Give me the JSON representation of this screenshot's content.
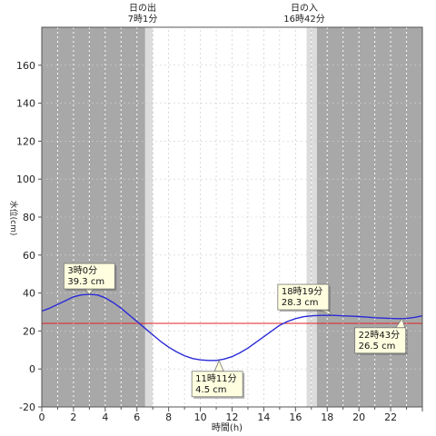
{
  "chart_data": {
    "type": "line",
    "title": "",
    "xlabel": "時間(h)",
    "ylabel": "水位(cm)",
    "xlim": [
      0,
      24
    ],
    "ylim": [
      -20,
      180
    ],
    "x_ticks": [
      0,
      2,
      4,
      6,
      8,
      10,
      12,
      14,
      16,
      18,
      20,
      22
    ],
    "x_tick_labels": [
      "0",
      "2",
      "4",
      "6",
      "8",
      "10",
      "12",
      "14",
      "16",
      "18",
      "20",
      "22"
    ],
    "y_ticks": [
      -20,
      0,
      20,
      40,
      60,
      80,
      100,
      120,
      140,
      160
    ],
    "y_tick_labels": [
      "-20",
      "0",
      "20",
      "40",
      "60",
      "80",
      "100",
      "120",
      "140",
      "160"
    ],
    "grid": true,
    "reference_line": {
      "y": 24,
      "color": "#e02020"
    },
    "series": [
      {
        "color": "#2a2ad8",
        "x": [
          0,
          0.5,
          1,
          1.5,
          2,
          2.5,
          3,
          3.5,
          4,
          4.5,
          5,
          5.5,
          6,
          6.5,
          7,
          7.5,
          8,
          8.5,
          9,
          9.5,
          10,
          10.5,
          11,
          11.5,
          12,
          12.5,
          13,
          13.5,
          14,
          14.5,
          15,
          15.5,
          16,
          16.5,
          17,
          17.5,
          18,
          18.5,
          19,
          19.5,
          20,
          20.5,
          21,
          21.5,
          22,
          22.5,
          23,
          23.5,
          24
        ],
        "values": [
          30.5,
          32,
          34,
          36,
          38,
          39,
          39.3,
          39,
          37.5,
          35,
          32,
          28.5,
          25,
          21.5,
          18,
          14.5,
          11.5,
          9,
          7,
          5.5,
          4.8,
          4.5,
          4.5,
          5.2,
          6.5,
          8.5,
          11,
          14,
          17,
          20,
          23,
          25,
          26.5,
          27.5,
          28,
          28.2,
          28.3,
          28.2,
          28,
          27.8,
          27.6,
          27.3,
          27,
          26.8,
          26.6,
          26.5,
          26.6,
          27.2,
          28
        ]
      }
    ],
    "sunrise": {
      "label": "日の出",
      "time": "7時1分",
      "hour": 7.02
    },
    "sunset": {
      "label": "日の入",
      "time": "16時42分",
      "hour": 16.7
    },
    "annotations": [
      {
        "time": "3時0分",
        "value": "39.3 cm",
        "x": 3.0,
        "y": 39.3
      },
      {
        "time": "11時11分",
        "value": "4.5 cm",
        "x": 11.18,
        "y": 4.5
      },
      {
        "time": "18時19分",
        "value": "28.3 cm",
        "x": 18.32,
        "y": 28.3
      },
      {
        "time": "22時43分",
        "value": "26.5 cm",
        "x": 22.72,
        "y": 26.5
      }
    ],
    "colors": {
      "night": "#a8a8a8",
      "twilight": "#dcdcdc",
      "day": "#ffffff",
      "callout_bg": "#ffffe0"
    }
  }
}
